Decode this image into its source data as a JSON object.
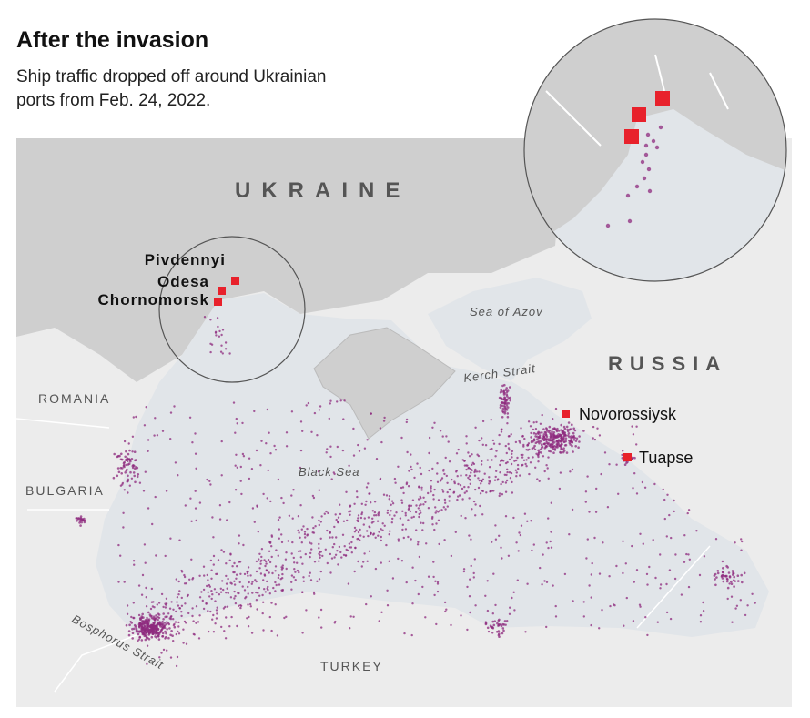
{
  "header": {
    "title": "After the invasion",
    "subtitle": "Ship traffic dropped off around Ukrainian ports from Feb. 24, 2022."
  },
  "map": {
    "countries": [
      "UKRAINE",
      "RUSSIA",
      "ROMANIA",
      "BULGARIA",
      "TURKEY"
    ],
    "waters": [
      "Sea of Azov",
      "Black Sea",
      "Kerch Strait",
      "Bosphorus Strait"
    ],
    "ports": [
      "Pivdennyi",
      "Odesa",
      "Chornomorsk",
      "Novorossiysk",
      "Tuapse"
    ]
  }
}
